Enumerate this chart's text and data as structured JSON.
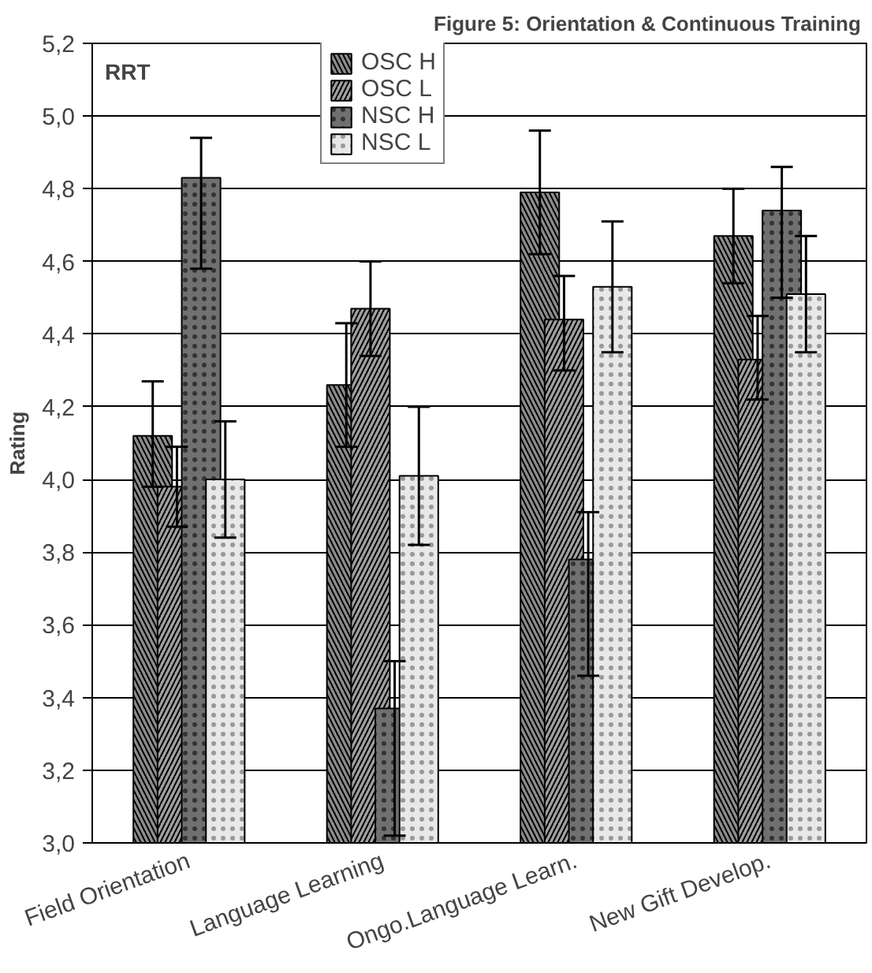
{
  "chart_data": {
    "type": "bar",
    "title": "Figure 5:  Orientation & Continuous Training",
    "ylabel": "Rating",
    "categories": [
      "Field Orientation",
      "Language Learning",
      "Ongo.Language Learn.",
      "New Gift Develop."
    ],
    "series": [
      {
        "name": "OSC H",
        "color": "#8c8c8c",
        "values": [
          4.12,
          4.26,
          4.79,
          4.67
        ],
        "errors": [
          [
            3.98,
            4.27
          ],
          [
            4.09,
            4.43
          ],
          [
            4.62,
            4.96
          ],
          [
            4.54,
            4.8
          ]
        ]
      },
      {
        "name": "OSC L",
        "color": "#a0a0a0",
        "values": [
          3.98,
          4.47,
          4.44,
          4.33
        ],
        "errors": [
          [
            3.87,
            4.09
          ],
          [
            4.34,
            4.6
          ],
          [
            4.3,
            4.56
          ],
          [
            4.22,
            4.45
          ]
        ]
      },
      {
        "name": "NSC H",
        "color": "#707070",
        "values": [
          4.83,
          3.37,
          3.78,
          4.74
        ],
        "errors": [
          [
            4.58,
            4.94
          ],
          [
            3.02,
            3.5
          ],
          [
            3.46,
            3.91
          ],
          [
            4.5,
            4.86
          ]
        ]
      },
      {
        "name": "NSC L",
        "color": "#e8e8e8",
        "values": [
          4.0,
          4.01,
          4.53,
          4.51
        ],
        "errors": [
          [
            3.84,
            4.16
          ],
          [
            3.82,
            4.2
          ],
          [
            4.35,
            4.71
          ],
          [
            4.35,
            4.67
          ]
        ]
      }
    ],
    "ylim": [
      3.0,
      5.2
    ],
    "yticks": [
      {
        "value": 3.0,
        "label": "3,0"
      },
      {
        "value": 3.2,
        "label": "3,2"
      },
      {
        "value": 3.4,
        "label": "3,4"
      },
      {
        "value": 3.6,
        "label": "3,6"
      },
      {
        "value": 3.8,
        "label": "3,8"
      },
      {
        "value": 4.0,
        "label": "4,0"
      },
      {
        "value": 4.2,
        "label": "4,2"
      },
      {
        "value": 4.4,
        "label": "4,4"
      },
      {
        "value": 4.6,
        "label": "4,6"
      },
      {
        "value": 4.8,
        "label": "4,8"
      },
      {
        "value": 5.0,
        "label": "5,0"
      },
      {
        "value": 5.2,
        "label": "5,2"
      }
    ],
    "grid": "y",
    "legend": "top",
    "annotations": [
      "RRT"
    ]
  }
}
